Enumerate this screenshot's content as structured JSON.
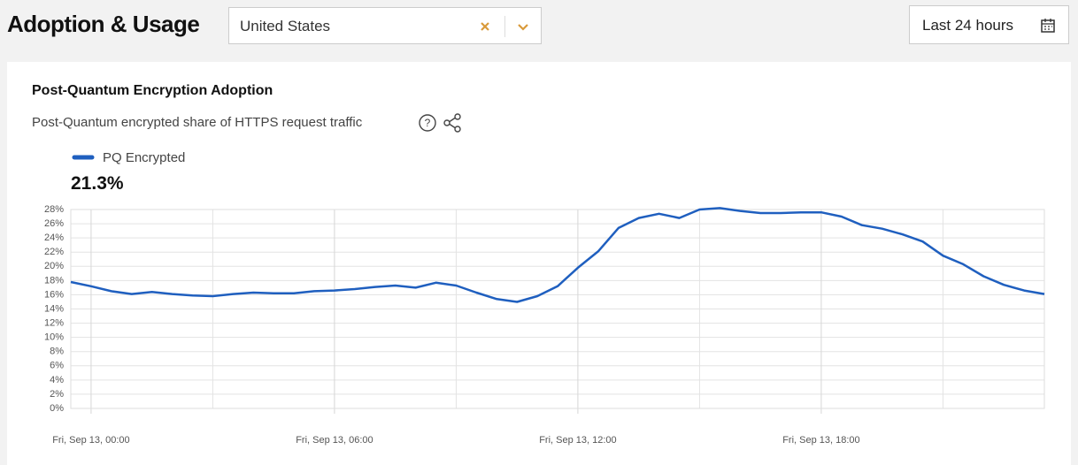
{
  "header": {
    "title": "Adoption & Usage",
    "location": "United States",
    "time_range": "Last 24 hours"
  },
  "card": {
    "title": "Post-Quantum Encryption Adoption",
    "subtitle": "Post-Quantum encrypted share of HTTPS request traffic",
    "summary_value": "21.3%"
  },
  "chart_data": {
    "type": "line",
    "x": [
      -0.5,
      0,
      0.5,
      1,
      1.5,
      2,
      2.5,
      3,
      3.5,
      4,
      4.5,
      5,
      5.5,
      6,
      6.5,
      7,
      7.5,
      8,
      8.5,
      9,
      9.5,
      10,
      10.5,
      11,
      11.5,
      12,
      12.5,
      13,
      13.5,
      14,
      14.5,
      15,
      15.5,
      16,
      16.5,
      17,
      17.5,
      18,
      18.5,
      19,
      19.5,
      20,
      20.5,
      21,
      21.5,
      22,
      22.5,
      23,
      23.5
    ],
    "series": [
      {
        "name": "PQ Encrypted",
        "color": "#1f5fbf",
        "values": [
          17.8,
          17.2,
          16.5,
          16.1,
          16.4,
          16.1,
          15.9,
          15.8,
          16.1,
          16.3,
          16.2,
          16.2,
          16.5,
          16.6,
          16.8,
          17.1,
          17.3,
          17.0,
          17.7,
          17.3,
          16.3,
          15.4,
          15.0,
          15.8,
          17.2,
          19.8,
          22.1,
          25.4,
          26.8,
          27.4,
          26.8,
          28.0,
          28.2,
          27.8,
          27.5,
          27.5,
          27.6,
          27.6,
          27.0,
          25.8,
          25.3,
          24.5,
          23.5,
          21.5,
          20.3,
          18.6,
          17.4,
          16.6,
          16.1
        ]
      }
    ],
    "xlim": [
      -0.5,
      23.5
    ],
    "xticks": [
      {
        "value": 0,
        "label": "Fri, Sep 13, 00:00"
      },
      {
        "value": 6,
        "label": "Fri, Sep 13, 06:00"
      },
      {
        "value": 12,
        "label": "Fri, Sep 13, 12:00"
      },
      {
        "value": 18,
        "label": "Fri, Sep 13, 18:00"
      }
    ],
    "x_minor_gridlines": [
      3,
      9,
      15,
      21
    ],
    "ylim": [
      0,
      28
    ],
    "yticks": [
      {
        "value": 0,
        "label": "0%"
      },
      {
        "value": 2,
        "label": "2%"
      },
      {
        "value": 4,
        "label": "4%"
      },
      {
        "value": 6,
        "label": "6%"
      },
      {
        "value": 8,
        "label": "8%"
      },
      {
        "value": 10,
        "label": "10%"
      },
      {
        "value": 12,
        "label": "12%"
      },
      {
        "value": 14,
        "label": "14%"
      },
      {
        "value": 16,
        "label": "16%"
      },
      {
        "value": 18,
        "label": "18%"
      },
      {
        "value": 20,
        "label": "20%"
      },
      {
        "value": 22,
        "label": "22%"
      },
      {
        "value": 24,
        "label": "24%"
      },
      {
        "value": 26,
        "label": "26%"
      },
      {
        "value": 28,
        "label": "28%"
      }
    ],
    "grid": true
  }
}
